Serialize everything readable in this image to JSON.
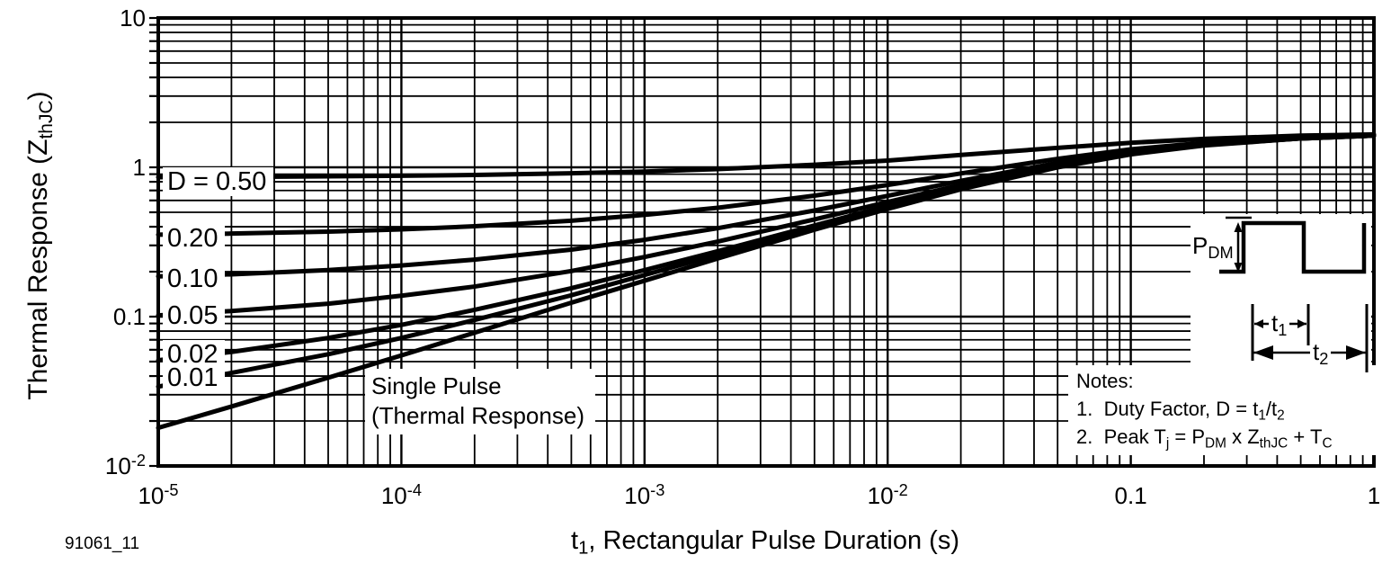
{
  "figure_number": "91061_11",
  "colors": {
    "ink": "#000000",
    "background": "#ffffff"
  },
  "axes": {
    "y_title": {
      "segs": [
        {
          "t": "Thermal Response (Z"
        },
        {
          "t": "thJC",
          "sub": true
        },
        {
          "t": ")"
        }
      ]
    },
    "x_title": {
      "segs": [
        {
          "t": "t"
        },
        {
          "t": "1",
          "sub": true
        },
        {
          "t": ", Rectangular Pulse Duration (s)"
        }
      ]
    }
  },
  "annotations": {
    "single_pulse": {
      "lines": [
        "Single Pulse",
        "(Thermal Response)"
      ]
    }
  },
  "notes": {
    "heading": "Notes:",
    "items": [
      {
        "segs": [
          {
            "t": "1.  Duty Factor, D = t"
          },
          {
            "t": "1",
            "sub": true
          },
          {
            "t": "/t"
          },
          {
            "t": "2",
            "sub": true
          }
        ]
      },
      {
        "segs": [
          {
            "t": "2.  Peak T"
          },
          {
            "t": "j",
            "sub": true
          },
          {
            "t": " = P"
          },
          {
            "t": "DM",
            "sub": true
          },
          {
            "t": " x Z"
          },
          {
            "t": "thJC",
            "sub": true
          },
          {
            "t": " + T"
          },
          {
            "t": "C",
            "sub": true
          }
        ]
      }
    ]
  },
  "inset": {
    "pdm": {
      "segs": [
        {
          "t": "P"
        },
        {
          "t": "DM",
          "sub": true
        }
      ]
    },
    "t1": {
      "segs": [
        {
          "t": "t"
        },
        {
          "t": "1",
          "sub": true
        }
      ]
    },
    "t2": {
      "segs": [
        {
          "t": "t"
        },
        {
          "t": "2",
          "sub": true
        }
      ]
    }
  },
  "chart_data": {
    "type": "line",
    "title": "",
    "xlabel": "t1, Rectangular Pulse Duration (s)",
    "ylabel": "Thermal Response (ZthJC)",
    "x_scale": "log",
    "y_scale": "log",
    "xlim": [
      1e-05,
      1
    ],
    "ylim": [
      0.01,
      10
    ],
    "grid": "log-log, minor gridlines on",
    "legend_position": "curve labels at left edge",
    "x_ticks": [
      {
        "value": 1e-05,
        "segs": [
          {
            "t": "10"
          },
          {
            "t": "-5",
            "sup": true
          }
        ]
      },
      {
        "value": 0.0001,
        "segs": [
          {
            "t": "10"
          },
          {
            "t": "-4",
            "sup": true
          }
        ]
      },
      {
        "value": 0.001,
        "segs": [
          {
            "t": "10"
          },
          {
            "t": "-3",
            "sup": true
          }
        ]
      },
      {
        "value": 0.01,
        "segs": [
          {
            "t": "10"
          },
          {
            "t": "-2",
            "sup": true
          }
        ]
      },
      {
        "value": 0.1,
        "segs": [
          {
            "t": "0.1"
          }
        ]
      },
      {
        "value": 1,
        "segs": [
          {
            "t": "1"
          }
        ]
      }
    ],
    "y_ticks": [
      {
        "value": 10,
        "segs": [
          {
            "t": "10"
          }
        ]
      },
      {
        "value": 1,
        "segs": [
          {
            "t": "1"
          }
        ]
      },
      {
        "value": 0.1,
        "segs": [
          {
            "t": "0.1"
          }
        ]
      },
      {
        "value": 0.01,
        "segs": [
          {
            "t": "10"
          },
          {
            "t": "-2",
            "sup": true
          }
        ]
      }
    ],
    "curve_labels": [
      "D = 0.50",
      "0.20",
      "0.10",
      "0.05",
      "0.02",
      "0.01"
    ],
    "x": [
      1e-05,
      2e-05,
      5e-05,
      0.0001,
      0.0002,
      0.0005,
      0.001,
      0.002,
      0.005,
      0.01,
      0.02,
      0.05,
      0.1,
      0.2,
      0.5,
      1
    ],
    "series": [
      {
        "name": "D = 0.50",
        "duty": 0.5,
        "values": [
          0.859,
          0.862,
          0.87,
          0.878,
          0.889,
          0.912,
          0.937,
          0.973,
          1.04,
          1.11,
          1.21,
          1.35,
          1.46,
          1.55,
          1.63,
          1.66
        ]
      },
      {
        "name": "D = 0.20",
        "duty": 0.2,
        "values": [
          0.354,
          0.36,
          0.371,
          0.384,
          0.403,
          0.439,
          0.48,
          0.536,
          0.646,
          0.762,
          0.91,
          1.14,
          1.32,
          1.46,
          1.59,
          1.64
        ]
      },
      {
        "name": "D = 0.10",
        "duty": 0.1,
        "values": [
          0.186,
          0.192,
          0.205,
          0.22,
          0.241,
          0.281,
          0.327,
          0.391,
          0.514,
          0.644,
          0.811,
          1.07,
          1.27,
          1.43,
          1.57,
          1.63
        ]
      },
      {
        "name": "D = 0.05",
        "duty": 0.05,
        "values": [
          0.102,
          0.109,
          0.122,
          0.138,
          0.159,
          0.202,
          0.251,
          0.318,
          0.448,
          0.586,
          0.761,
          1.04,
          1.25,
          1.42,
          1.57,
          1.63
        ]
      },
      {
        "name": "D = 0.02",
        "duty": 0.02,
        "values": [
          0.051,
          0.058,
          0.072,
          0.088,
          0.111,
          0.155,
          0.205,
          0.274,
          0.408,
          0.551,
          0.732,
          1.02,
          1.23,
          1.41,
          1.56,
          1.63
        ]
      },
      {
        "name": "D = 0.01",
        "duty": 0.01,
        "values": [
          0.034,
          0.042,
          0.056,
          0.072,
          0.095,
          0.139,
          0.19,
          0.26,
          0.395,
          0.539,
          0.722,
          1.01,
          1.23,
          1.41,
          1.56,
          1.63
        ]
      },
      {
        "name": "Single Pulse (Thermal Response)",
        "duty": 0,
        "values": [
          0.018,
          0.025,
          0.039,
          0.055,
          0.078,
          0.124,
          0.174,
          0.245,
          0.382,
          0.527,
          0.712,
          1.0,
          1.22,
          1.4,
          1.56,
          1.63
        ]
      }
    ]
  }
}
